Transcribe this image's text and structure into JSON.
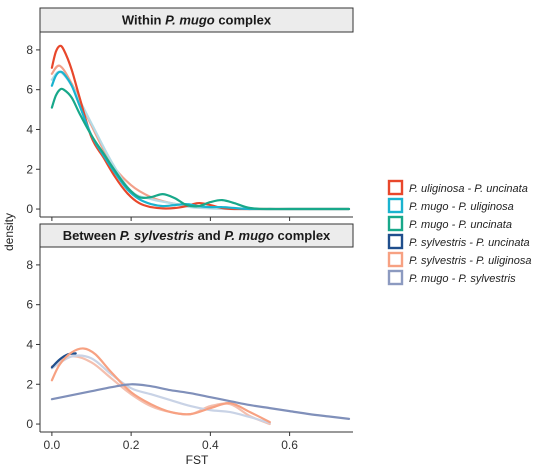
{
  "chart_data": {
    "type": "line",
    "kind": "density",
    "xlabel": "FST",
    "ylabel": "density",
    "xlim": [
      -0.03,
      0.76
    ],
    "ylim": [
      -0.4,
      8.9
    ],
    "x_ticks": [
      "0.0",
      "0.2",
      "0.4",
      "0.6"
    ],
    "y_ticks": [
      "0",
      "2",
      "4",
      "6",
      "8"
    ],
    "legend_position": "right",
    "grid": false,
    "legend": [
      {
        "label": "P. uliginosa - P. uncinata",
        "color": "#e8472b"
      },
      {
        "label": "P. mugo - P. uliginosa",
        "color": "#1ab3cf"
      },
      {
        "label": "P. mugo - P. uncinata",
        "color": "#18a88a"
      },
      {
        "label": "P. sylvestris - P. uncinata",
        "color": "#1f4e8c"
      },
      {
        "label": "P. sylvestris - P. uliginosa",
        "color": "#f7a182"
      },
      {
        "label": "P. mugo - P. sylvestris",
        "color": "#8c9ac0"
      }
    ],
    "panels": [
      {
        "strip": {
          "pre": "Within ",
          "italic": "P. mugo",
          "post": " complex"
        },
        "series": [
          {
            "color": "#f2a08a",
            "x": [
              0.0,
              0.02,
              0.05,
              0.1,
              0.15,
              0.2,
              0.25,
              0.3,
              0.35,
              0.4,
              0.45,
              0.5
            ],
            "y": [
              6.8,
              7.2,
              6.3,
              4.2,
              2.3,
              1.2,
              0.6,
              0.3,
              0.15,
              0.05,
              0.02,
              0.0
            ]
          },
          {
            "color": "#b5dbe6",
            "x": [
              0.0,
              0.02,
              0.05,
              0.1,
              0.15,
              0.2,
              0.25,
              0.3,
              0.35,
              0.4,
              0.45,
              0.5
            ],
            "y": [
              6.5,
              6.9,
              6.2,
              4.3,
              2.4,
              0.9,
              0.5,
              0.3,
              0.1,
              0.03,
              0.0,
              0.0
            ]
          },
          {
            "color": "#e8472b",
            "x": [
              0.0,
              0.01,
              0.02,
              0.03,
              0.05,
              0.07,
              0.1,
              0.13,
              0.16,
              0.19,
              0.22,
              0.25,
              0.28,
              0.31,
              0.34,
              0.37,
              0.4,
              0.43,
              0.46,
              0.5,
              0.55,
              0.6,
              0.75
            ],
            "y": [
              7.1,
              7.9,
              8.2,
              8.0,
              7.0,
              5.6,
              3.6,
              2.6,
              1.6,
              0.8,
              0.3,
              0.1,
              0.03,
              0.05,
              0.15,
              0.3,
              0.2,
              0.05,
              0.0,
              0.0,
              0.0,
              0.0,
              0.0
            ]
          },
          {
            "color": "#1ab3cf",
            "x": [
              0.0,
              0.01,
              0.02,
              0.03,
              0.05,
              0.07,
              0.1,
              0.13,
              0.16,
              0.19,
              0.22,
              0.25,
              0.28,
              0.31,
              0.34,
              0.37,
              0.4,
              0.43,
              0.46,
              0.5,
              0.55,
              0.6,
              0.75
            ],
            "y": [
              6.2,
              6.7,
              6.9,
              6.8,
              6.2,
              5.2,
              3.7,
              2.7,
              1.8,
              1.0,
              0.5,
              0.25,
              0.15,
              0.2,
              0.25,
              0.15,
              0.1,
              0.1,
              0.05,
              0.0,
              0.0,
              0.0,
              0.0
            ]
          },
          {
            "color": "#18a88a",
            "x": [
              0.0,
              0.01,
              0.02,
              0.03,
              0.05,
              0.07,
              0.1,
              0.13,
              0.16,
              0.19,
              0.22,
              0.25,
              0.28,
              0.31,
              0.34,
              0.37,
              0.4,
              0.43,
              0.46,
              0.5,
              0.55,
              0.6,
              0.75
            ],
            "y": [
              5.1,
              5.7,
              6.0,
              6.0,
              5.6,
              4.8,
              3.7,
              2.8,
              1.9,
              1.1,
              0.6,
              0.6,
              0.75,
              0.55,
              0.2,
              0.15,
              0.35,
              0.45,
              0.3,
              0.05,
              0.0,
              0.0,
              0.0
            ]
          }
        ]
      },
      {
        "strip": {
          "pre": "Between ",
          "italic": "P. sylvestris",
          "post": " and ",
          "italic2": "P. mugo",
          "post2": " complex"
        },
        "series": [
          {
            "color": "#f4bfae",
            "x": [
              0.0,
              0.05,
              0.1,
              0.15,
              0.2,
              0.25,
              0.3,
              0.35,
              0.4,
              0.45,
              0.5,
              0.55
            ],
            "y": [
              2.9,
              3.4,
              3.1,
              2.3,
              1.5,
              0.9,
              0.6,
              0.5,
              0.9,
              1.0,
              0.4,
              0.0
            ]
          },
          {
            "color": "#c9d3e6",
            "x": [
              0.0,
              0.05,
              0.1,
              0.15,
              0.2,
              0.25,
              0.3,
              0.35,
              0.4,
              0.45,
              0.5,
              0.55
            ],
            "y": [
              2.8,
              3.4,
              3.3,
              2.5,
              1.8,
              1.5,
              1.2,
              0.9,
              0.7,
              0.6,
              0.35,
              0.05
            ]
          },
          {
            "color": "#1f4e8c",
            "x": [
              0.0,
              0.02,
              0.04,
              0.06
            ],
            "y": [
              2.85,
              3.25,
              3.5,
              3.55
            ]
          },
          {
            "color": "#f7a182",
            "x": [
              0.0,
              0.02,
              0.05,
              0.08,
              0.11,
              0.15,
              0.2,
              0.25,
              0.3,
              0.35,
              0.4,
              0.45,
              0.5,
              0.55
            ],
            "y": [
              2.2,
              3.0,
              3.6,
              3.8,
              3.5,
              2.6,
              1.6,
              1.0,
              0.6,
              0.5,
              0.8,
              1.05,
              0.6,
              0.1
            ]
          },
          {
            "color": "#8090ba",
            "x": [
              0.0,
              0.05,
              0.1,
              0.15,
              0.2,
              0.25,
              0.3,
              0.35,
              0.4,
              0.45,
              0.5,
              0.55,
              0.6,
              0.65,
              0.7,
              0.75
            ],
            "y": [
              1.25,
              1.45,
              1.65,
              1.85,
              2.0,
              1.9,
              1.7,
              1.55,
              1.35,
              1.15,
              0.95,
              0.8,
              0.65,
              0.5,
              0.38,
              0.26
            ]
          }
        ]
      }
    ]
  }
}
